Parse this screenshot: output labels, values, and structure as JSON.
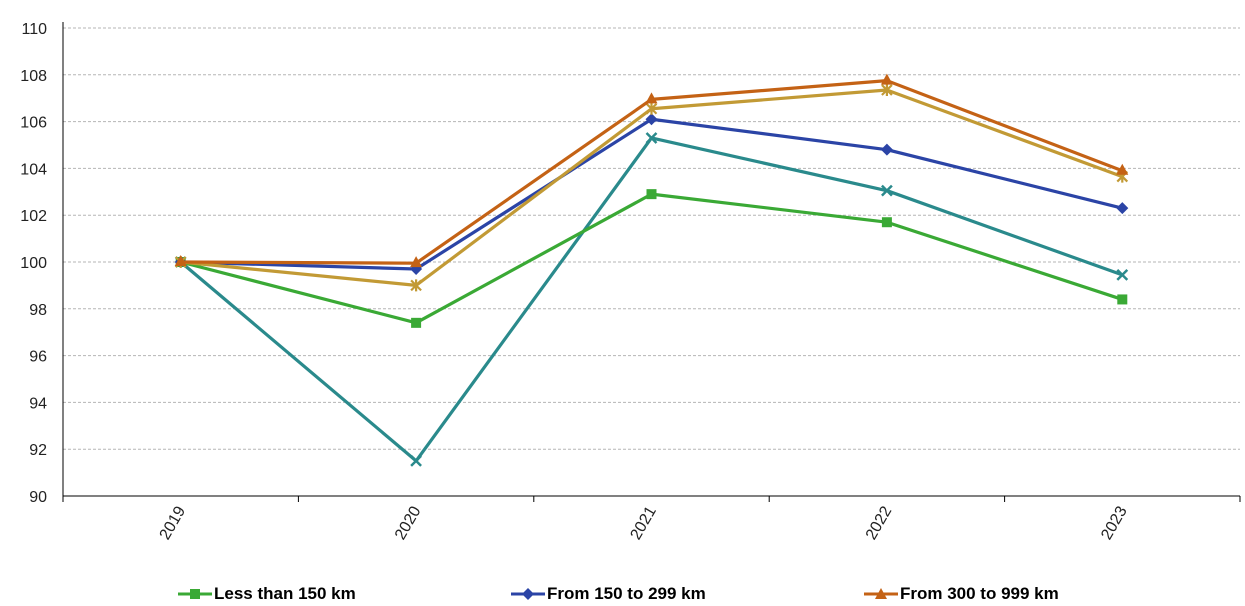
{
  "chart_data": {
    "type": "line",
    "title": "",
    "xlabel": "",
    "ylabel": "",
    "categories": [
      "2019",
      "2020",
      "2021",
      "2022",
      "2023"
    ],
    "ylim": [
      90,
      110
    ],
    "yticks": [
      90,
      92,
      94,
      96,
      98,
      100,
      102,
      104,
      106,
      108,
      110
    ],
    "grid": true,
    "legend_position": "bottom",
    "series": [
      {
        "name": "Less than 150 km",
        "values": [
          100,
          97.4,
          102.9,
          101.7,
          98.4
        ],
        "color": "#3aa935",
        "marker": "square",
        "in_legend": true
      },
      {
        "name": "From 150 to 299 km",
        "values": [
          100,
          99.7,
          106.1,
          104.8,
          102.3
        ],
        "color": "#2b44a6",
        "marker": "diamond",
        "in_legend": true
      },
      {
        "name": "From 300 to 999 km",
        "values": [
          100,
          99.95,
          106.95,
          107.75,
          103.9
        ],
        "color": "#c46215",
        "marker": "triangle",
        "in_legend": true
      },
      {
        "values": [
          100,
          99.0,
          106.55,
          107.35,
          103.65
        ],
        "color": "#c29a35",
        "marker": "star",
        "in_legend": false
      },
      {
        "values": [
          100,
          91.5,
          105.3,
          103.05,
          99.45
        ],
        "color": "#2a8a8c",
        "marker": "x",
        "in_legend": false
      }
    ]
  }
}
